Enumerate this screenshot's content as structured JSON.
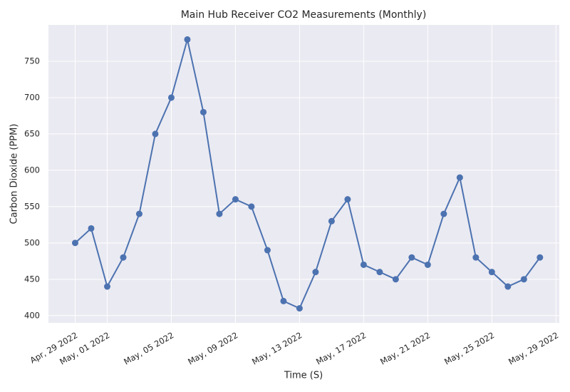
{
  "chart_data": {
    "type": "line",
    "title": "Main Hub Receiver CO2 Measurements (Monthly)",
    "xlabel": "Time (S)",
    "ylabel": "Carbon Dioxide (PPM)",
    "x": [
      "2022-04-29",
      "2022-04-30",
      "2022-05-01",
      "2022-05-02",
      "2022-05-03",
      "2022-05-04",
      "2022-05-05",
      "2022-05-06",
      "2022-05-07",
      "2022-05-08",
      "2022-05-09",
      "2022-05-10",
      "2022-05-11",
      "2022-05-12",
      "2022-05-13",
      "2022-05-14",
      "2022-05-15",
      "2022-05-16",
      "2022-05-17",
      "2022-05-18",
      "2022-05-19",
      "2022-05-20",
      "2022-05-21",
      "2022-05-22",
      "2022-05-23",
      "2022-05-24",
      "2022-05-25",
      "2022-05-26",
      "2022-05-27",
      "2022-05-28"
    ],
    "values": [
      500,
      520,
      440,
      480,
      540,
      650,
      700,
      780,
      680,
      540,
      560,
      550,
      490,
      420,
      410,
      460,
      530,
      560,
      470,
      460,
      450,
      480,
      470,
      540,
      590,
      480,
      460,
      440,
      450,
      480
    ],
    "color": "#4c72b0",
    "xlim": [
      "2022-04-27T08:00",
      "2022-05-29T05:00"
    ],
    "xticks": [
      {
        "value": "2022-04-29",
        "label": "Apr, 29 2022"
      },
      {
        "value": "2022-05-01",
        "label": "May, 01 2022"
      },
      {
        "value": "2022-05-05",
        "label": "May, 05 2022"
      },
      {
        "value": "2022-05-09",
        "label": "May, 09 2022"
      },
      {
        "value": "2022-05-13",
        "label": "May, 13 2022"
      },
      {
        "value": "2022-05-17",
        "label": "May, 17 2022"
      },
      {
        "value": "2022-05-21",
        "label": "May, 21 2022"
      },
      {
        "value": "2022-05-25",
        "label": "May, 25 2022"
      },
      {
        "value": "2022-05-29",
        "label": "May, 29 2022"
      }
    ],
    "ylim": [
      390,
      800
    ],
    "yticks": [
      400,
      450,
      500,
      550,
      600,
      650,
      700,
      750
    ],
    "grid": true
  }
}
